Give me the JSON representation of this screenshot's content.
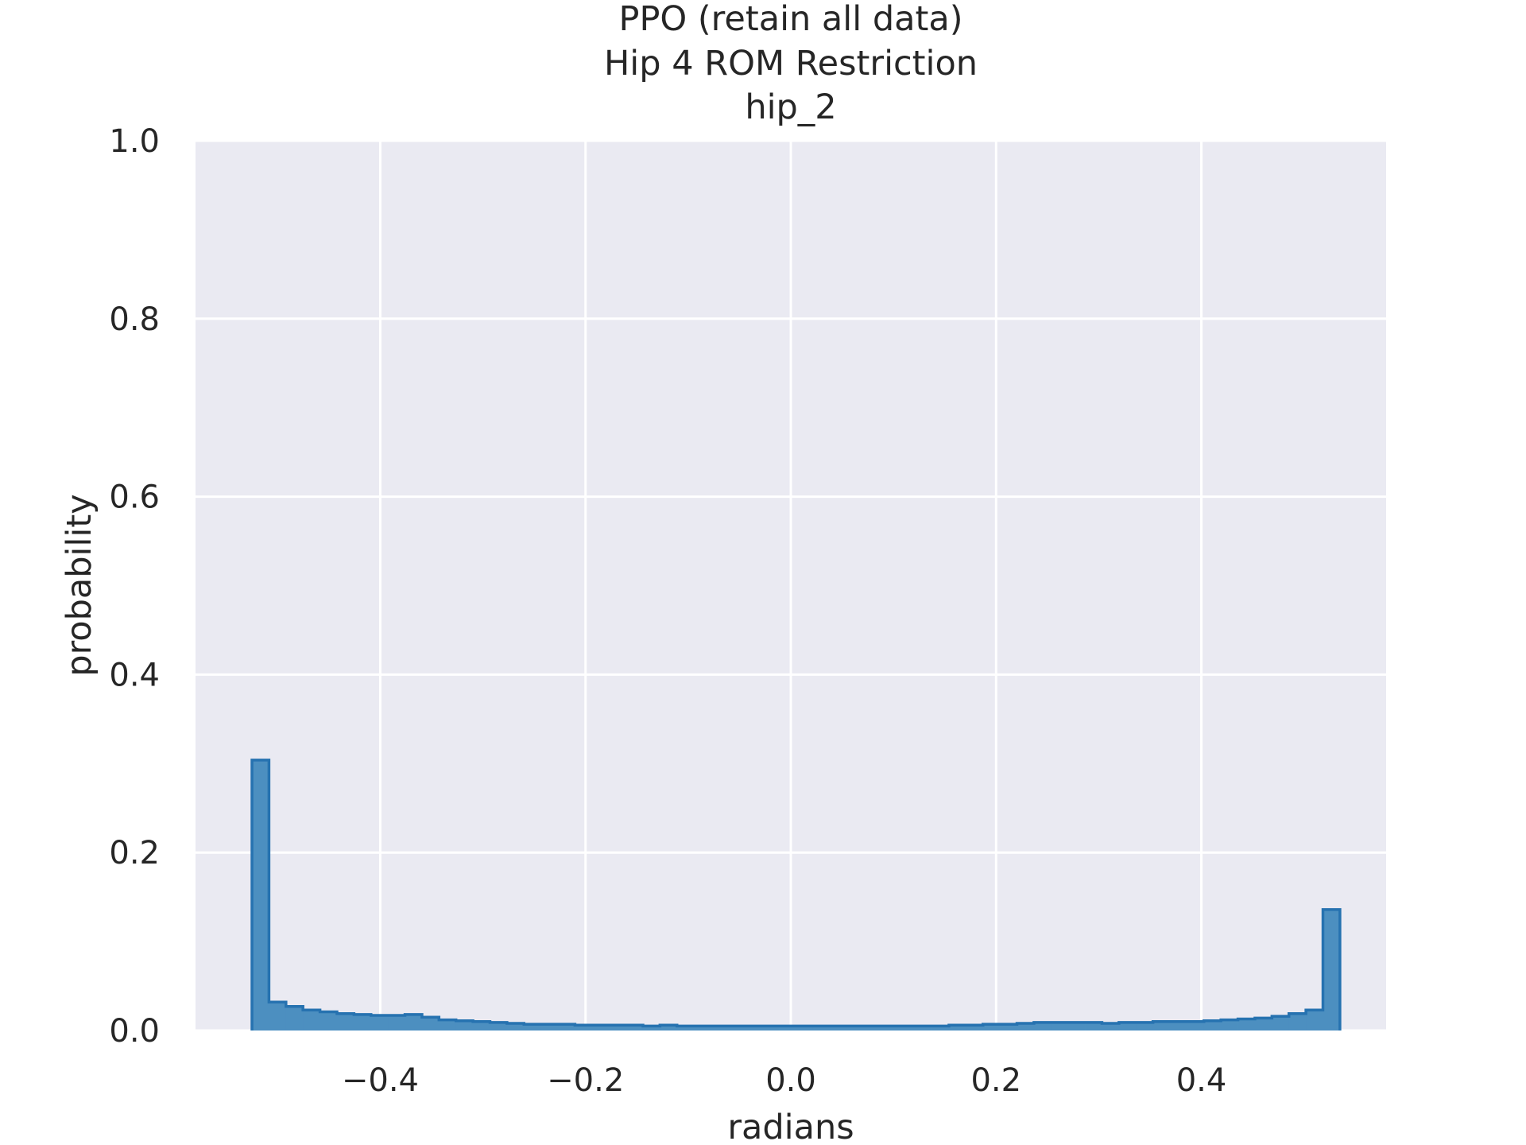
{
  "chart_data": {
    "type": "bar",
    "subtype": "step-histogram",
    "title_lines": [
      "PPO (retain all data)",
      "Hip 4 ROM Restriction",
      "hip_2"
    ],
    "xlabel": "radians",
    "ylabel": "probability",
    "xlim": [
      -0.58,
      0.58
    ],
    "ylim": [
      0.0,
      1.0
    ],
    "xticks": [
      -0.4,
      -0.2,
      0.0,
      0.2,
      0.4
    ],
    "xtick_labels": [
      "−0.4",
      "−0.2",
      "0.0",
      "0.2",
      "0.4"
    ],
    "yticks": [
      0.0,
      0.2,
      0.4,
      0.6,
      0.8,
      1.0
    ],
    "ytick_labels": [
      "0.0",
      "0.2",
      "0.4",
      "0.6",
      "0.8",
      "1.0"
    ],
    "grid": true,
    "colors": {
      "fill": "#4c8fc0",
      "edge": "#2672b0",
      "plot_bg": "#eaeaf2",
      "grid": "#ffffff"
    },
    "bin_range": [
      -0.525,
      0.535
    ],
    "bin_values": [
      0.304,
      0.032,
      0.027,
      0.023,
      0.021,
      0.019,
      0.018,
      0.017,
      0.017,
      0.018,
      0.015,
      0.012,
      0.011,
      0.01,
      0.009,
      0.008,
      0.007,
      0.007,
      0.007,
      0.006,
      0.006,
      0.006,
      0.006,
      0.005,
      0.006,
      0.005,
      0.005,
      0.005,
      0.005,
      0.005,
      0.005,
      0.005,
      0.005,
      0.005,
      0.005,
      0.005,
      0.005,
      0.005,
      0.005,
      0.005,
      0.005,
      0.006,
      0.006,
      0.007,
      0.007,
      0.008,
      0.009,
      0.009,
      0.009,
      0.009,
      0.008,
      0.009,
      0.009,
      0.01,
      0.01,
      0.01,
      0.011,
      0.012,
      0.013,
      0.014,
      0.016,
      0.019,
      0.023,
      0.136
    ]
  }
}
